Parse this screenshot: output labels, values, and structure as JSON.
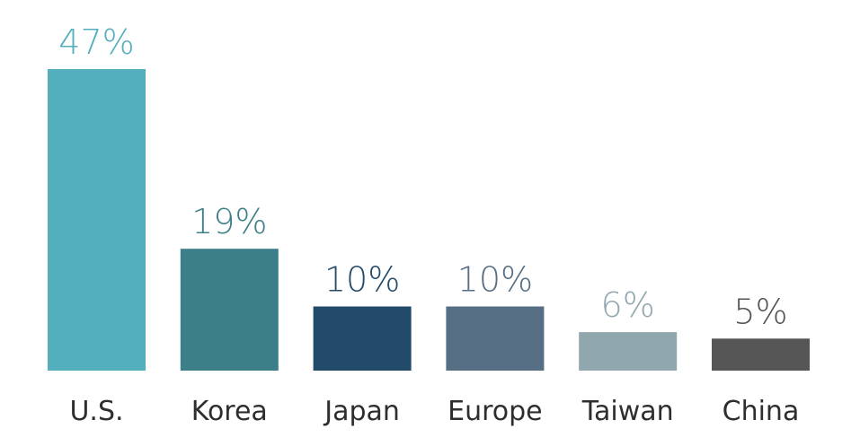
{
  "chart_data": {
    "type": "bar",
    "categories": [
      "U.S.",
      "Korea",
      "Japan",
      "Europe",
      "Taiwan",
      "China"
    ],
    "values": [
      47,
      19,
      10,
      10,
      6,
      5
    ],
    "value_labels": [
      "47%",
      "19%",
      "10%",
      "10%",
      "6%",
      "5%"
    ],
    "bar_colors": [
      "#54afbd",
      "#3d7f88",
      "#224a69",
      "#566f84",
      "#91a7ae",
      "#555555"
    ],
    "label_colors": [
      "#54afbd",
      "#3d7f88",
      "#224a69",
      "#566f84",
      "#91a7ae",
      "#555555"
    ],
    "title": "",
    "xlabel": "",
    "ylabel": "",
    "unit": "%",
    "ylim": [
      0,
      47
    ],
    "grid": false,
    "legend": "none"
  }
}
